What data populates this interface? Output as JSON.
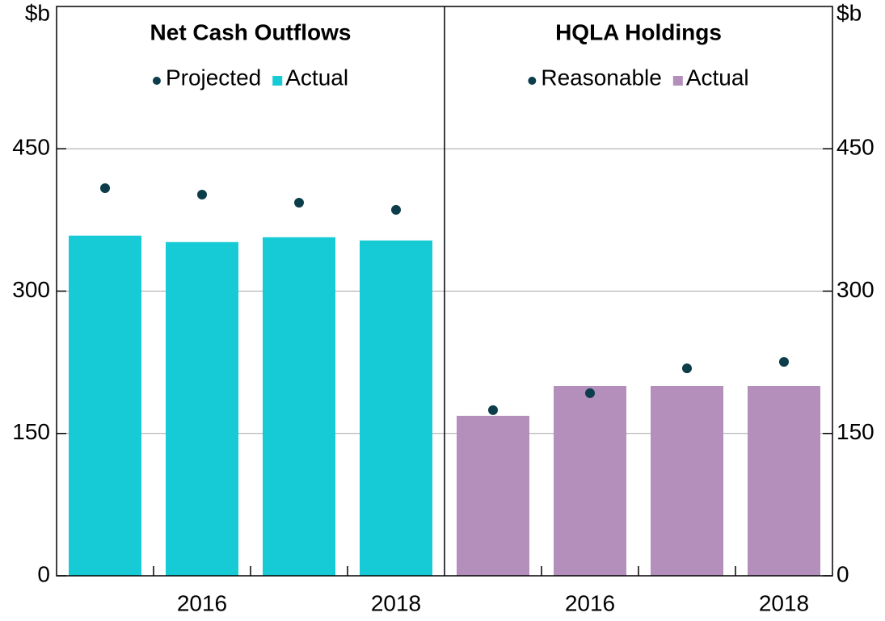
{
  "chart_data": [
    {
      "type": "bar",
      "title": "Net Cash Outflows",
      "ylabel": "$b",
      "y_axis_side": "left",
      "categories": [
        null,
        "2016",
        null,
        "2018"
      ],
      "series": [
        {
          "name": "Projected",
          "type": "dot",
          "color": "#0b3d4a",
          "values": [
            408.5,
            401.7,
            393.2,
            385.6
          ]
        },
        {
          "name": "Actual",
          "type": "bar",
          "color": "#17cbd6",
          "values": [
            358.5,
            351.7,
            356.8,
            353.4
          ]
        }
      ],
      "ylim": [
        0,
        600
      ],
      "yticks": [
        0,
        150,
        300,
        450
      ],
      "grid": true
    },
    {
      "type": "bar",
      "title": "HQLA Holdings",
      "ylabel": "$b",
      "y_axis_side": "right",
      "categories": [
        null,
        "2016",
        null,
        "2018"
      ],
      "series": [
        {
          "name": "Reasonable",
          "type": "dot",
          "color": "#0b3d4a",
          "values": [
            174.6,
            192.4,
            218.6,
            225.4
          ]
        },
        {
          "name": "Actual",
          "type": "bar",
          "color": "#b48fbb",
          "values": [
            168.6,
            200,
            200,
            200
          ]
        }
      ],
      "ylim": [
        0,
        600
      ],
      "yticks": [
        0,
        150,
        300,
        450
      ],
      "grid": true
    }
  ]
}
